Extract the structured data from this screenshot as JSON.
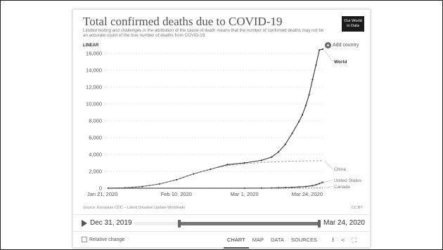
{
  "title": "Total confirmed deaths due to COVID-19",
  "subtitle": "Limited testing and challenges in the attribution of the cause of death means that the number of confirmed deaths may not be an accurate count of the true number of deaths from COVID-19.",
  "logo_line1": "Our World",
  "logo_line2": "in Data",
  "scale_label": "LINEAR",
  "add_country": "Add country",
  "source": "Source: European CDC – Latest Situation Update Worldwide",
  "license": "CC BY",
  "timeline": {
    "start": "Dec 31, 2019",
    "end": "Mar 24, 2020",
    "range_start_fraction": 0.25,
    "range_end_fraction": 1.0
  },
  "relative_change": "Relative change",
  "tabs": [
    "CHART",
    "MAP",
    "DATA",
    "SOURCES"
  ],
  "active_tab": "CHART",
  "colors": {
    "world": "#333333",
    "china": "#999999",
    "us": "#444444",
    "canada": "#666666"
  },
  "chart_data": {
    "type": "line",
    "title": "Total confirmed deaths due to COVID-19",
    "ylim": [
      0,
      16000
    ],
    "yticks": [
      0,
      2000,
      4000,
      6000,
      8000,
      10000,
      12000,
      14000,
      16000
    ],
    "yticklabels": [
      "0",
      "2,000",
      "4,000",
      "6,000",
      "8,000",
      "10,000",
      "12,000",
      "14,000",
      "16,000"
    ],
    "xticklabels": [
      "Jan 21, 2020",
      "Feb 10, 2020",
      "Mar 1, 2020",
      "Mar 24, 2020"
    ],
    "xtick_days": [
      0,
      20,
      40,
      63
    ],
    "x_start": "2020-01-21",
    "x_end": "2020-03-24",
    "series": [
      {
        "name": "World",
        "days": [
          0,
          5,
          10,
          15,
          20,
          25,
          30,
          35,
          40,
          45,
          48,
          50,
          52,
          54,
          56,
          57,
          58,
          59,
          60,
          61,
          62,
          63
        ],
        "values": [
          0,
          40,
          200,
          500,
          1000,
          1700,
          2250,
          2800,
          3000,
          3300,
          3700,
          4300,
          5200,
          6500,
          7900,
          8700,
          9800,
          11100,
          12900,
          14600,
          16400,
          16500
        ]
      },
      {
        "name": "China",
        "days": [
          0,
          5,
          10,
          15,
          20,
          25,
          30,
          35,
          40,
          45,
          50,
          55,
          63
        ],
        "values": [
          0,
          40,
          200,
          500,
          1000,
          1700,
          2250,
          2700,
          2900,
          3050,
          3150,
          3220,
          3270
        ]
      },
      {
        "name": "United States",
        "days": [
          0,
          40,
          45,
          48,
          50,
          52,
          54,
          56,
          58,
          60,
          61,
          62,
          63
        ],
        "values": [
          0,
          0,
          10,
          20,
          40,
          70,
          100,
          150,
          200,
          300,
          400,
          550,
          700
        ]
      },
      {
        "name": "Canada",
        "days": [
          0,
          45,
          50,
          55,
          58,
          60,
          63
        ],
        "values": [
          0,
          0,
          1,
          5,
          10,
          15,
          24
        ]
      }
    ]
  }
}
